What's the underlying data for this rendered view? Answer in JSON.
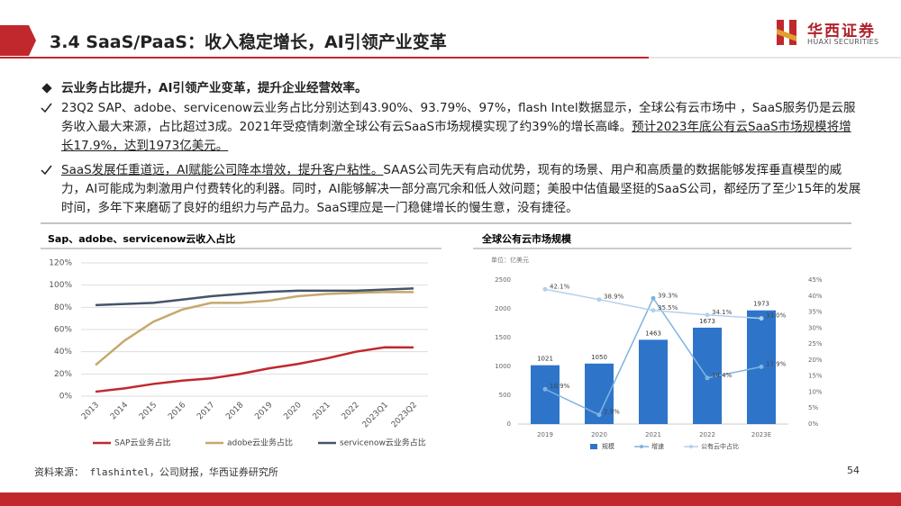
{
  "header": {
    "title": "3.4 SaaS/PaaS：收入稳定增长，AI引领产业变革",
    "logo_name": "华西证券",
    "logo_sub": "HUAXI SECURITIES"
  },
  "bullets": [
    {
      "text": "云业务占比提升，AI引领产业变革，提升企业经营效率。"
    },
    {
      "text": "23Q2 SAP、adobe、servicenow云业务占比分别达到43.90%、93.79%、97%，flash Intel数据显示，全球公有云市场中 ，SaaS服务仍是云服务收入最大来源，占比超过3成。2021年受疫情刺激全球公有云SaaS市场规模实现了约39%的增长高峰。",
      "underlined": "预计2023年底公有云SaaS市场规模将增长17.9%，达到1973亿美元。"
    },
    {
      "underlined": "SaaS发展任重道远，AI赋能公司降本增效，提升客户粘性。",
      "text": "SAAS公司先天有启动优势，现有的场景、用户和高质量的数据能够发挥垂直模型的威力，AI可能成为刺激用户付费转化的利器。同时，AI能够解决一部分高冗余和低人效问题；美股中估值最坚挺的SaaS公司，都经历了至少15年的发展时间，多年下来磨砺了良好的组织力与产品力。SaaS理应是一门稳健增长的慢生意，没有捷径。"
    }
  ],
  "charts": [
    {
      "type": "line",
      "title": "Sap、adobe、servicenow云收入占比",
      "categories": [
        "2013",
        "2014",
        "2015",
        "2016",
        "2017",
        "2018",
        "2019",
        "2020",
        "2021",
        "2022",
        "2023Q1",
        "2023Q2"
      ],
      "series": [
        {
          "name": "SAP云业务占比",
          "color": "#c0282d",
          "values": [
            4,
            7,
            11,
            14,
            16,
            20,
            25,
            29,
            34,
            40,
            44,
            43.9
          ]
        },
        {
          "name": "adobe云业务占比",
          "color": "#c6a86c",
          "values": [
            28,
            50,
            67,
            78,
            84,
            84,
            86,
            90,
            92,
            93,
            93.8,
            93.79
          ]
        },
        {
          "name": "servicenow云业务占比",
          "color": "#44546a",
          "values": [
            82,
            83,
            84,
            87,
            90,
            92,
            94,
            95,
            95,
            95,
            96,
            97
          ]
        }
      ],
      "ylim": [
        0,
        120
      ],
      "yticks": [
        {
          "value": 0,
          "label": "0%"
        },
        {
          "value": 20,
          "label": "20%"
        },
        {
          "value": 40,
          "label": "40%"
        },
        {
          "value": 60,
          "label": "60%"
        },
        {
          "value": 80,
          "label": "80%"
        },
        {
          "value": 100,
          "label": "100%"
        },
        {
          "value": 120,
          "label": "120%"
        }
      ],
      "grid": true,
      "legend": "bottom"
    },
    {
      "type": "bar_line",
      "title": "全球公有云市场规模",
      "unit": "单位：亿美元",
      "categories": [
        "2019",
        "2020",
        "2021",
        "2022",
        "2023E"
      ],
      "series": [
        {
          "name": "规模",
          "type": "bar",
          "color": "#2e75c9",
          "values": [
            1021,
            1050,
            1463,
            1673,
            1973
          ]
        },
        {
          "name": "增速",
          "type": "line",
          "axis": "y2",
          "color": "#7fb2e0",
          "values": [
            10.9,
            2.9,
            39.3,
            14.4,
            17.9
          ],
          "value_labels": [
            "10.9%",
            "2.9%",
            "39.3%",
            "14.4%",
            "17.9%"
          ]
        },
        {
          "name": "公有云中占比",
          "type": "line",
          "axis": "y2",
          "color": "#b4d0ec",
          "values": [
            42.1,
            38.9,
            35.5,
            34.1,
            33.0
          ],
          "value_labels": [
            "42.1%",
            "38.9%",
            "35.5%",
            "34.1%",
            "33.0%"
          ]
        }
      ],
      "ylim": [
        0,
        2500
      ],
      "yticks": [
        0,
        500,
        1000,
        1500,
        2000,
        2500
      ],
      "y2lim": [
        0,
        45
      ],
      "y2ticks": [
        {
          "value": 0,
          "label": "0%"
        },
        {
          "value": 5,
          "label": "5%"
        },
        {
          "value": 10,
          "label": "10%"
        },
        {
          "value": 15,
          "label": "15%"
        },
        {
          "value": 20,
          "label": "20%"
        },
        {
          "value": 25,
          "label": "25%"
        },
        {
          "value": 30,
          "label": "30%"
        },
        {
          "value": 35,
          "label": "35%"
        },
        {
          "value": 40,
          "label": "40%"
        },
        {
          "value": 45,
          "label": "45%"
        }
      ],
      "grid": false,
      "legend": "bottom"
    }
  ],
  "footer": {
    "source": "资料来源： flashintel，公司财报，华西证券研究所",
    "page": 54
  }
}
